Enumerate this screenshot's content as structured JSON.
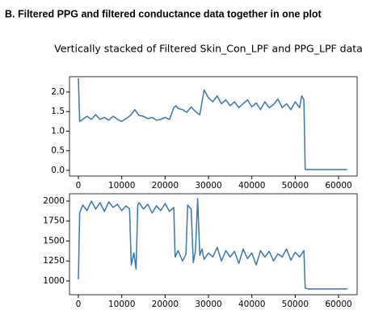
{
  "heading": "B. Filtered PPG and filtered conductance data together in one plot",
  "suptitle": "Vertically stacked of Filtered Skin_Con_LPF and PPG_LPF data",
  "chart_data": [
    {
      "type": "line",
      "color": "#3a76af",
      "x": [
        0,
        300,
        1000,
        2000,
        3000,
        4000,
        5000,
        6000,
        7000,
        8000,
        9000,
        10000,
        11000,
        12000,
        13000,
        14000,
        15000,
        16000,
        17000,
        18000,
        19000,
        20000,
        21000,
        22000,
        22500,
        23000,
        24000,
        25000,
        26000,
        27000,
        28000,
        29000,
        29500,
        30000,
        31000,
        32000,
        33000,
        34000,
        35000,
        36000,
        37000,
        38000,
        39000,
        40000,
        41000,
        42000,
        43000,
        44000,
        45000,
        46000,
        47000,
        48000,
        49000,
        50000,
        51000,
        51500,
        52000,
        52300,
        53000,
        62000
      ],
      "values": [
        2.35,
        1.25,
        1.3,
        1.38,
        1.3,
        1.42,
        1.3,
        1.35,
        1.28,
        1.38,
        1.3,
        1.25,
        1.32,
        1.4,
        1.55,
        1.4,
        1.38,
        1.32,
        1.35,
        1.28,
        1.3,
        1.35,
        1.3,
        1.6,
        1.65,
        1.58,
        1.55,
        1.48,
        1.62,
        1.5,
        1.42,
        2.05,
        1.95,
        1.85,
        1.75,
        1.9,
        1.7,
        1.8,
        1.65,
        1.75,
        1.6,
        1.7,
        1.8,
        1.62,
        1.72,
        1.55,
        1.75,
        1.6,
        1.68,
        1.82,
        1.6,
        1.7,
        1.55,
        1.75,
        1.6,
        1.9,
        1.8,
        0.02,
        0.02,
        0.02
      ],
      "xlim": [
        -2050,
        64280
      ],
      "xticks": [
        0,
        10000,
        20000,
        30000,
        40000,
        50000,
        60000
      ],
      "ylim": [
        -0.144,
        2.39
      ],
      "yticks": [
        {
          "value": 0,
          "label": "0.0"
        },
        0.5,
        {
          "value": 1,
          "label": "1.0"
        },
        1.5,
        {
          "value": 2,
          "label": "2.0"
        }
      ]
    },
    {
      "type": "line",
      "color": "#3a76af",
      "x": [
        0,
        300,
        1000,
        2000,
        3000,
        4000,
        5000,
        6000,
        7000,
        8000,
        9000,
        10000,
        11000,
        11800,
        12200,
        12800,
        13300,
        13700,
        14000,
        15000,
        16000,
        17000,
        18000,
        19000,
        20000,
        21000,
        22000,
        22300,
        23000,
        24000,
        24800,
        25200,
        26000,
        26500,
        27000,
        27500,
        28000,
        28500,
        29000,
        30000,
        31000,
        32000,
        33000,
        34000,
        35000,
        36000,
        37000,
        38000,
        39000,
        40000,
        41000,
        42000,
        43000,
        44000,
        45000,
        46000,
        47000,
        48000,
        49000,
        50000,
        51000,
        52000,
        52300,
        53000,
        62000
      ],
      "values": [
        1020,
        1850,
        1950,
        1880,
        2000,
        1900,
        1980,
        1870,
        1990,
        1920,
        1960,
        1880,
        1940,
        1900,
        1200,
        1350,
        1150,
        1950,
        1980,
        1900,
        1960,
        1850,
        1940,
        1880,
        1970,
        1870,
        1920,
        1300,
        1380,
        1250,
        1330,
        1950,
        1900,
        1230,
        1380,
        2030,
        1320,
        1400,
        1270,
        1350,
        1300,
        1420,
        1250,
        1380,
        1300,
        1370,
        1220,
        1400,
        1280,
        1350,
        1200,
        1380,
        1300,
        1370,
        1250,
        1340,
        1300,
        1400,
        1260,
        1360,
        1300,
        1380,
        910,
        900,
        900
      ],
      "xlim": [
        -2050,
        64280
      ],
      "xticks": [
        0,
        10000,
        20000,
        30000,
        40000,
        50000,
        60000
      ],
      "ylim": [
        828,
        2091
      ],
      "yticks": [
        1000,
        1250,
        1500,
        1750,
        2000
      ]
    }
  ]
}
